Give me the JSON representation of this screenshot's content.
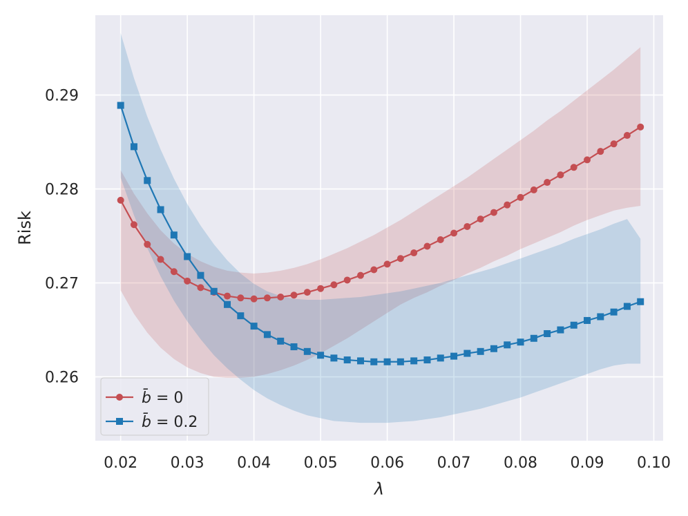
{
  "chart_data": {
    "type": "line",
    "title": "",
    "xlabel": "λ",
    "ylabel": "Risk",
    "xlim": [
      0.0162,
      0.1014
    ],
    "ylim": [
      0.2532,
      0.2985
    ],
    "xticks": [
      0.02,
      0.03,
      0.04,
      0.05,
      0.06,
      0.07,
      0.08,
      0.09,
      0.1
    ],
    "xtick_labels": [
      "0.02",
      "0.03",
      "0.04",
      "0.05",
      "0.06",
      "0.07",
      "0.08",
      "0.09",
      "0.10"
    ],
    "yticks": [
      0.26,
      0.27,
      0.28,
      0.29
    ],
    "ytick_labels": [
      "0.26",
      "0.27",
      "0.28",
      "0.29"
    ],
    "grid": true,
    "legend_position": "bottom-left",
    "x": [
      0.02,
      0.022,
      0.024,
      0.026,
      0.028,
      0.03,
      0.032,
      0.034,
      0.036,
      0.038,
      0.04,
      0.042,
      0.044,
      0.046,
      0.048,
      0.05,
      0.052,
      0.054,
      0.056,
      0.058,
      0.06,
      0.062,
      0.064,
      0.066,
      0.068,
      0.07,
      0.072,
      0.074,
      0.076,
      0.078,
      0.08,
      0.082,
      0.084,
      0.086,
      0.088,
      0.09,
      0.092,
      0.094,
      0.096,
      0.098
    ],
    "series": [
      {
        "name": "b̄ = 0",
        "legend_var": "b̄",
        "legend_rest": " = 0",
        "color": "#c44e52",
        "marker": "circle",
        "values": [
          0.2788,
          0.2762,
          0.2741,
          0.2725,
          0.2712,
          0.2702,
          0.2695,
          0.269,
          0.2686,
          0.2684,
          0.2683,
          0.2684,
          0.2685,
          0.2687,
          0.269,
          0.2694,
          0.2698,
          0.2703,
          0.2708,
          0.2714,
          0.272,
          0.2726,
          0.2732,
          0.2739,
          0.2746,
          0.2753,
          0.276,
          0.2768,
          0.2775,
          0.2783,
          0.2791,
          0.2799,
          0.2807,
          0.2815,
          0.2823,
          0.2831,
          0.284,
          0.2848,
          0.2857,
          0.2866
        ],
        "upper": [
          0.282,
          0.2795,
          0.2774,
          0.2756,
          0.2742,
          0.2731,
          0.2723,
          0.2717,
          0.2713,
          0.2711,
          0.271,
          0.2711,
          0.2713,
          0.2716,
          0.272,
          0.2725,
          0.2731,
          0.2737,
          0.2744,
          0.2751,
          0.2759,
          0.2767,
          0.2776,
          0.2785,
          0.2794,
          0.2803,
          0.2812,
          0.2822,
          0.2832,
          0.2842,
          0.2852,
          0.2862,
          0.2873,
          0.2883,
          0.2894,
          0.2905,
          0.2916,
          0.2927,
          0.2939,
          0.2951
        ],
        "lower": [
          0.2692,
          0.2667,
          0.2647,
          0.2631,
          0.2619,
          0.261,
          0.2604,
          0.26,
          0.2599,
          0.2599,
          0.26,
          0.2603,
          0.2607,
          0.2612,
          0.2618,
          0.2625,
          0.2633,
          0.2641,
          0.265,
          0.2659,
          0.2668,
          0.2677,
          0.2684,
          0.269,
          0.2697,
          0.2703,
          0.271,
          0.2716,
          0.2723,
          0.2729,
          0.2736,
          0.2742,
          0.2748,
          0.2754,
          0.2761,
          0.2767,
          0.2772,
          0.2777,
          0.278,
          0.2782
        ]
      },
      {
        "name": "b̄ = 0.2",
        "legend_var": "b̄",
        "legend_rest": " = 0.2",
        "color": "#1f77b4",
        "marker": "square",
        "values": [
          0.2889,
          0.2845,
          0.2809,
          0.2778,
          0.2751,
          0.2728,
          0.2708,
          0.2691,
          0.2677,
          0.2665,
          0.2654,
          0.2645,
          0.2638,
          0.2632,
          0.2627,
          0.2623,
          0.262,
          0.2618,
          0.2617,
          0.2616,
          0.2616,
          0.2616,
          0.2617,
          0.2618,
          0.262,
          0.2622,
          0.2625,
          0.2627,
          0.263,
          0.2634,
          0.2637,
          0.2641,
          0.2646,
          0.265,
          0.2655,
          0.266,
          0.2664,
          0.2669,
          0.2675,
          0.268
        ],
        "upper": [
          0.2966,
          0.2918,
          0.2877,
          0.2842,
          0.2811,
          0.2784,
          0.2761,
          0.2741,
          0.2724,
          0.271,
          0.2699,
          0.2691,
          0.2686,
          0.2683,
          0.2682,
          0.2682,
          0.2683,
          0.2684,
          0.2685,
          0.2687,
          0.2689,
          0.2691,
          0.2694,
          0.2697,
          0.27,
          0.2704,
          0.2708,
          0.2712,
          0.2716,
          0.2721,
          0.2726,
          0.2731,
          0.2736,
          0.2741,
          0.2747,
          0.2752,
          0.2757,
          0.2763,
          0.2768,
          0.2747
        ],
        "lower": [
          0.2812,
          0.2772,
          0.2737,
          0.2707,
          0.2681,
          0.2659,
          0.264,
          0.2623,
          0.2609,
          0.2597,
          0.2586,
          0.2577,
          0.257,
          0.2564,
          0.2559,
          0.2556,
          0.2553,
          0.2552,
          0.2551,
          0.2551,
          0.2551,
          0.2552,
          0.2553,
          0.2555,
          0.2557,
          0.256,
          0.2563,
          0.2566,
          0.257,
          0.2574,
          0.2578,
          0.2583,
          0.2588,
          0.2593,
          0.2598,
          0.2603,
          0.2608,
          0.2612,
          0.2614,
          0.2614
        ]
      }
    ]
  }
}
